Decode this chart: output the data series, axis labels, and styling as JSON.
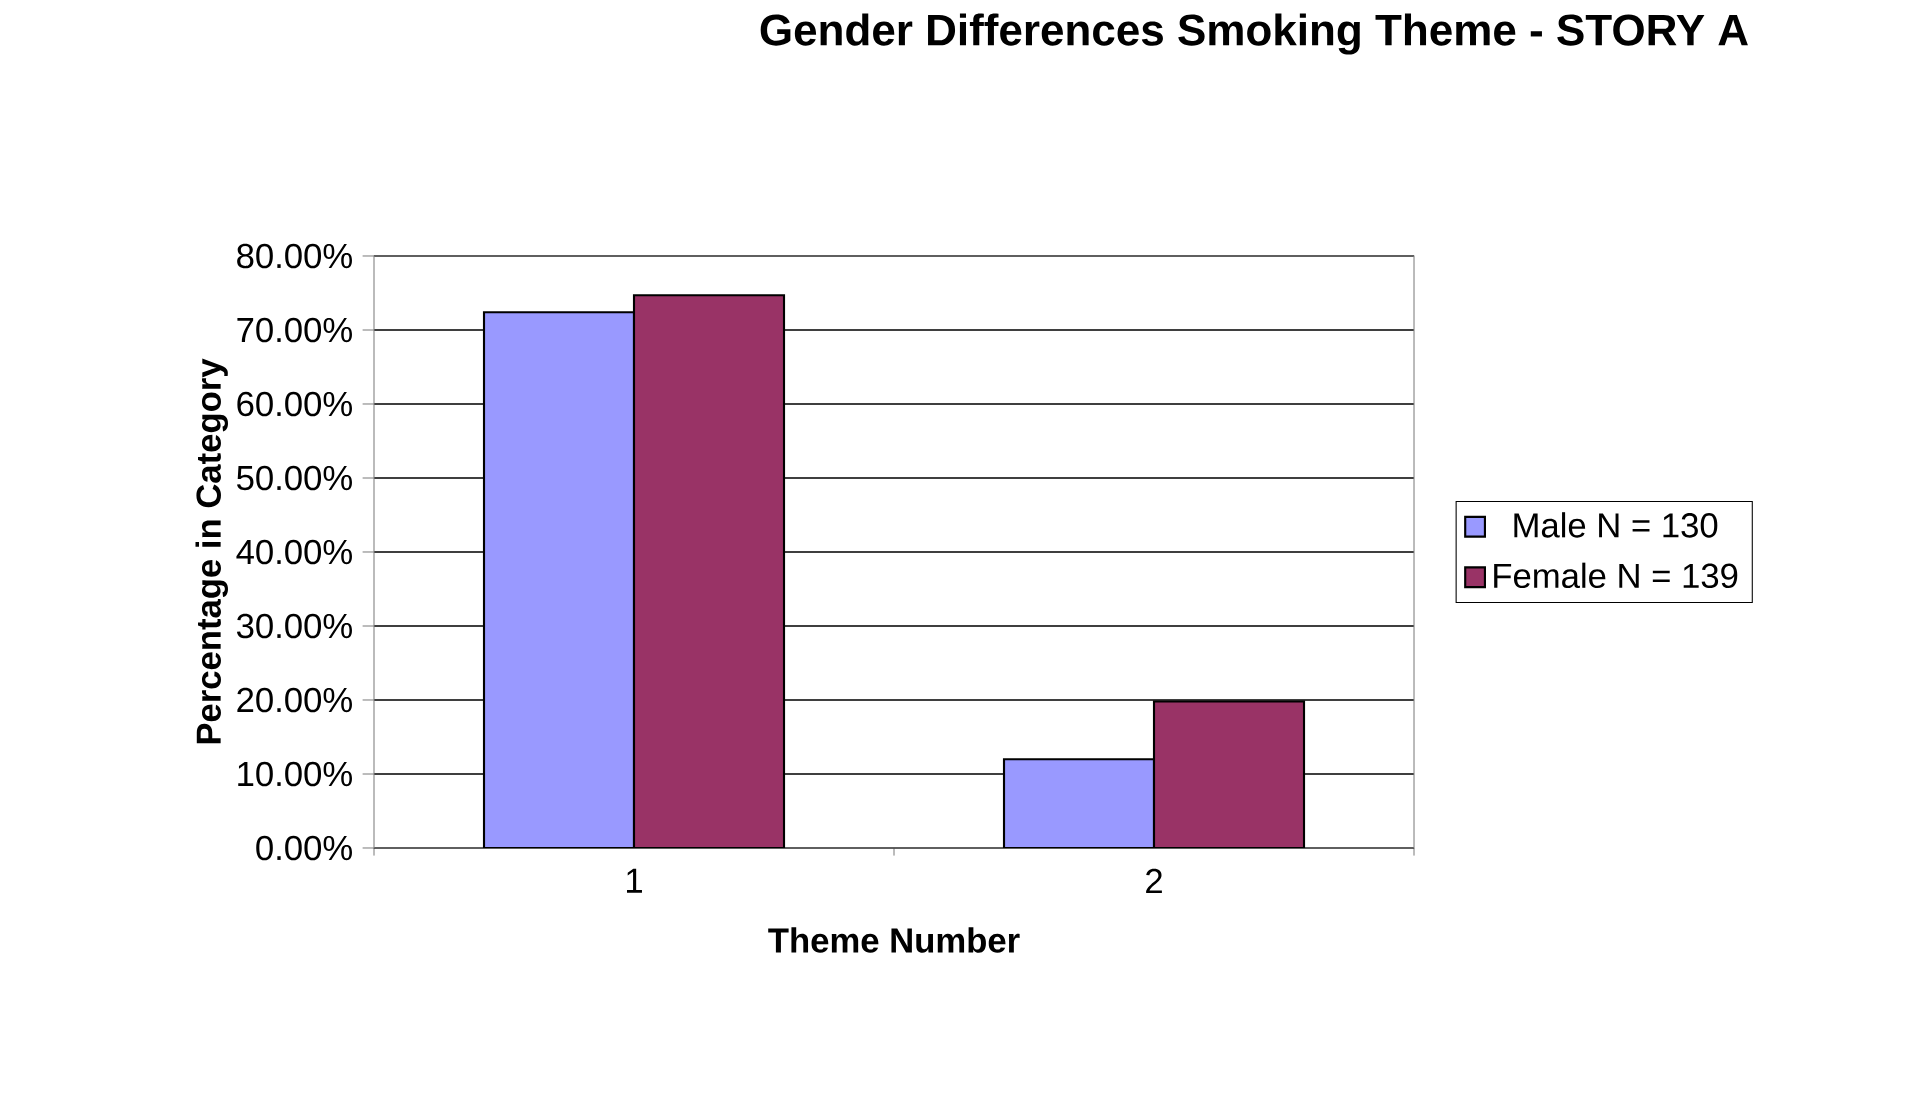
{
  "chart_data": {
    "type": "bar",
    "title": "Gender Differences Smoking Theme - STORY A",
    "xlabel": "Theme Number",
    "ylabel": "Percentage in Category",
    "categories": [
      "1",
      "2"
    ],
    "series": [
      {
        "name": "Male  N = 130",
        "color": "#9999ff",
        "values": [
          72.4,
          12.0
        ]
      },
      {
        "name": "Female  N = 139",
        "color": "#993366",
        "values": [
          74.7,
          19.8
        ]
      }
    ],
    "ylim": [
      0,
      80
    ],
    "yticks": [
      {
        "value": 0,
        "label": "0.00%"
      },
      {
        "value": 10,
        "label": "10.00%"
      },
      {
        "value": 20,
        "label": "20.00%"
      },
      {
        "value": 30,
        "label": "30.00%"
      },
      {
        "value": 40,
        "label": "40.00%"
      },
      {
        "value": 50,
        "label": "50.00%"
      },
      {
        "value": 60,
        "label": "60.00%"
      },
      {
        "value": 70,
        "label": "70.00%"
      },
      {
        "value": 80,
        "label": "80.00%"
      }
    ],
    "grid": "y",
    "legend": "right"
  }
}
